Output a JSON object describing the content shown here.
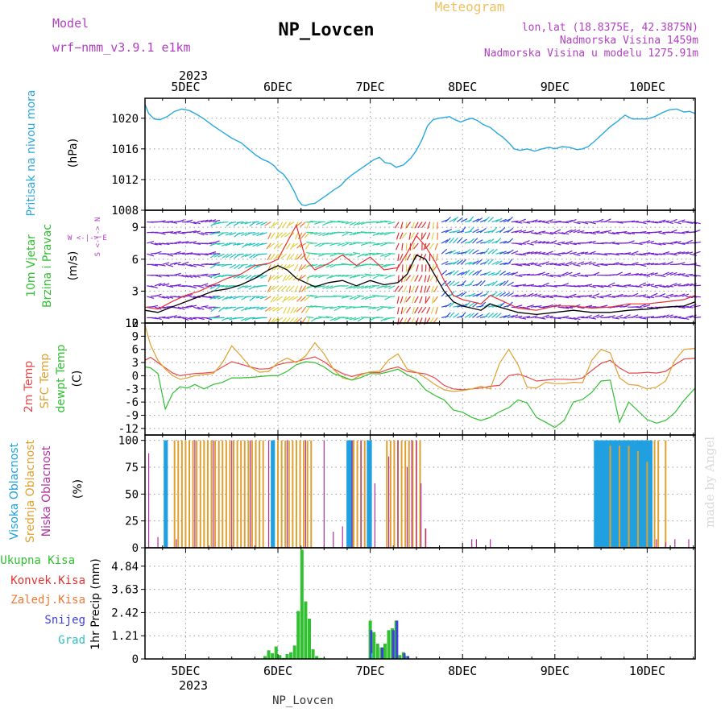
{
  "header": {
    "model_label": "Model",
    "model_name": "wrf−nmm_v3.9.1 e1km",
    "station": "NP_Lovcen",
    "product": "Meteogram",
    "lonlat": "lon,lat (18.8375E, 42.3875N)",
    "altitude": "Nadmorska Visina 1459m",
    "model_altitude": "Nadmorska Visina u modelu 1275.91m",
    "footer": "NP_Lovcen",
    "watermark": "made by Angel"
  },
  "colors": {
    "pressure": "#29a8e0",
    "wind_speed": "#000000",
    "wind_gust": "#e83030",
    "t2m": "#e84848",
    "sfc": "#e0a030",
    "dew": "#30c030",
    "cloud_high": "#20a0e0",
    "cloud_mid": "#e0a030",
    "cloud_low": "#b030a0",
    "precip_total": "#30c030",
    "precip_conv": "#e83030",
    "precip_frozen": "#f07830",
    "precip_snow": "#4040e0",
    "precip_graupel": "#30c0c0"
  },
  "time_axis": {
    "year": "2023",
    "days": [
      "5DEC",
      "6DEC",
      "7DEC",
      "8DEC",
      "9DEC",
      "10DEC"
    ],
    "day_positions": [
      5,
      6,
      7,
      8,
      9,
      10
    ],
    "start": 4.56,
    "end": 10.52
  },
  "chart_data": [
    {
      "type": "line",
      "panel": "pressure",
      "ylabel": "Pritisak na nivou mora",
      "yunit": "(hPa)",
      "ylim": [
        1008,
        1022.6
      ],
      "yticks": [
        1008,
        1012,
        1016,
        1020
      ],
      "x": [
        4.56,
        4.6,
        4.66,
        4.72,
        4.8,
        4.88,
        4.96,
        5.04,
        5.12,
        5.2,
        5.3,
        5.4,
        5.5,
        5.6,
        5.68,
        5.76,
        5.84,
        5.9,
        5.96,
        6.0,
        6.06,
        6.12,
        6.18,
        6.22,
        6.26,
        6.3,
        6.34,
        6.4,
        6.46,
        6.52,
        6.6,
        6.68,
        6.74,
        6.8,
        6.86,
        6.92,
        6.98,
        7.04,
        7.1,
        7.16,
        7.22,
        7.28,
        7.36,
        7.44,
        7.5,
        7.56,
        7.62,
        7.68,
        7.74,
        7.8,
        7.86,
        7.92,
        7.98,
        8.04,
        8.1,
        8.16,
        8.22,
        8.3,
        8.38,
        8.44,
        8.5,
        8.56,
        8.62,
        8.7,
        8.78,
        8.86,
        8.94,
        9.0,
        9.08,
        9.16,
        9.24,
        9.3,
        9.36,
        9.44,
        9.52,
        9.6,
        9.68,
        9.76,
        9.84,
        9.92,
        10.0,
        10.08,
        10.16,
        10.24,
        10.32,
        10.4,
        10.46,
        10.52
      ],
      "series": [
        {
          "values": [
            1021.8,
            1020.6,
            1019.9,
            1019.8,
            1020.2,
            1020.9,
            1021.2,
            1021.0,
            1020.5,
            1019.9,
            1019.0,
            1018.2,
            1017.4,
            1016.8,
            1016.0,
            1015.2,
            1014.6,
            1014.3,
            1013.8,
            1013.2,
            1012.7,
            1011.7,
            1010.4,
            1009.3,
            1008.7,
            1008.6,
            1008.8,
            1008.9,
            1009.4,
            1009.9,
            1010.6,
            1011.2,
            1012.0,
            1012.6,
            1013.1,
            1013.6,
            1014.1,
            1014.6,
            1014.9,
            1014.2,
            1014.1,
            1013.6,
            1013.9,
            1014.8,
            1015.8,
            1017.2,
            1019.0,
            1019.8,
            1020.0,
            1020.1,
            1020.2,
            1019.8,
            1019.5,
            1019.8,
            1020.0,
            1019.7,
            1019.2,
            1018.8,
            1018.0,
            1017.5,
            1016.8,
            1016.0,
            1015.8,
            1016.0,
            1015.7,
            1016.0,
            1016.2,
            1016.0,
            1016.3,
            1016.2,
            1015.9,
            1016.0,
            1016.3,
            1017.1,
            1018.0,
            1018.9,
            1019.6,
            1020.4,
            1019.9,
            1019.9,
            1019.9,
            1020.2,
            1020.7,
            1021.1,
            1021.2,
            1020.8,
            1020.9,
            1020.6
          ],
          "color_key": "pressure"
        }
      ]
    },
    {
      "type": "line",
      "panel": "wind",
      "ylabel": "10m Vjetar Brzina i Pravac",
      "yunit": "(m/s)",
      "legend_dir": "W <-|-> E",
      "legend_ns": "S <-|-> N",
      "ylim": [
        0,
        10.6
      ],
      "yticks": [
        0,
        3,
        6,
        9
      ],
      "x": [
        4.56,
        4.7,
        4.85,
        5.0,
        5.15,
        5.3,
        5.45,
        5.6,
        5.75,
        5.9,
        6.0,
        6.1,
        6.2,
        6.3,
        6.4,
        6.55,
        6.7,
        6.85,
        7.0,
        7.15,
        7.3,
        7.4,
        7.5,
        7.6,
        7.7,
        7.8,
        7.9,
        8.0,
        8.1,
        8.2,
        8.3,
        8.4,
        8.6,
        8.8,
        9.0,
        9.2,
        9.4,
        9.6,
        9.8,
        10.0,
        10.2,
        10.4,
        10.52
      ],
      "series": [
        {
          "name": "speed",
          "values": [
            1.2,
            1.0,
            1.5,
            2.0,
            2.5,
            3.0,
            3.2,
            3.6,
            4.2,
            5.0,
            5.4,
            5.0,
            4.2,
            3.8,
            3.4,
            3.8,
            4.0,
            3.5,
            4.0,
            3.6,
            3.8,
            4.6,
            6.4,
            6.0,
            4.5,
            3.0,
            2.0,
            1.6,
            1.4,
            1.2,
            1.8,
            1.5,
            1.0,
            0.8,
            1.0,
            1.2,
            1.0,
            1.0,
            1.2,
            1.3,
            1.5,
            1.6,
            2.0
          ],
          "color_key": "wind_speed"
        },
        {
          "name": "gust",
          "values": [
            1.5,
            1.3,
            2.0,
            2.6,
            3.0,
            3.6,
            4.2,
            4.6,
            5.4,
            5.6,
            6.0,
            7.6,
            9.2,
            6.0,
            5.0,
            5.6,
            6.4,
            5.4,
            6.2,
            5.0,
            5.2,
            6.6,
            8.2,
            7.2,
            5.8,
            4.0,
            2.6,
            2.2,
            2.0,
            1.8,
            2.6,
            2.2,
            1.4,
            1.2,
            1.6,
            1.6,
            1.4,
            1.5,
            1.8,
            1.8,
            2.0,
            2.2,
            2.6
          ],
          "color_key": "wind_gust"
        }
      ]
    },
    {
      "type": "line",
      "panel": "temperature",
      "ylabels": [
        "2m Temp",
        "SFC Temp",
        "dewpt Temp"
      ],
      "yunit": "(C)",
      "ylim": [
        -13.5,
        12
      ],
      "yticks": [
        -12,
        -9,
        -6,
        -3,
        0,
        3,
        6,
        9,
        12
      ],
      "x": [
        4.56,
        4.62,
        4.7,
        4.78,
        4.86,
        4.94,
        5.02,
        5.1,
        5.2,
        5.3,
        5.4,
        5.5,
        5.6,
        5.7,
        5.8,
        5.9,
        6.0,
        6.1,
        6.2,
        6.3,
        6.4,
        6.5,
        6.6,
        6.7,
        6.8,
        6.9,
        7.0,
        7.1,
        7.2,
        7.3,
        7.4,
        7.5,
        7.6,
        7.7,
        7.8,
        7.9,
        8.0,
        8.1,
        8.2,
        8.3,
        8.4,
        8.5,
        8.6,
        8.7,
        8.8,
        8.9,
        9.0,
        9.1,
        9.2,
        9.3,
        9.4,
        9.5,
        9.6,
        9.7,
        9.8,
        9.9,
        10.0,
        10.1,
        10.2,
        10.3,
        10.4,
        10.52
      ],
      "series": [
        {
          "name": "2m Temp",
          "values": [
            3.5,
            4.2,
            3.0,
            1.8,
            0.6,
            0.0,
            0.3,
            0.5,
            0.6,
            0.8,
            2.0,
            3.2,
            2.6,
            2.0,
            1.5,
            1.6,
            2.5,
            3.0,
            3.2,
            3.8,
            4.3,
            3.2,
            1.6,
            0.5,
            -0.2,
            0.4,
            0.8,
            0.7,
            1.5,
            2.0,
            1.0,
            0.7,
            0.4,
            -0.5,
            -2.2,
            -3.0,
            -3.2,
            -3.0,
            -2.8,
            -2.4,
            -2.2,
            0.0,
            0.4,
            -0.3,
            -1.2,
            -1.0,
            -0.8,
            -0.8,
            -0.9,
            -0.5,
            1.2,
            2.8,
            3.5,
            1.8,
            0.6,
            0.6,
            0.8,
            0.6,
            1.0,
            2.5,
            3.8,
            4.0
          ],
          "color_key": "t2m"
        },
        {
          "name": "SFC Temp",
          "values": [
            11.5,
            7.0,
            3.5,
            1.5,
            0.0,
            -0.8,
            -0.5,
            0.0,
            0.3,
            0.5,
            3.0,
            6.8,
            4.5,
            2.0,
            0.8,
            1.0,
            3.0,
            4.0,
            3.0,
            4.5,
            7.5,
            5.0,
            1.5,
            -0.5,
            -1.0,
            0.2,
            0.9,
            1.0,
            3.6,
            5.0,
            1.5,
            0.8,
            -0.5,
            -2.0,
            -3.2,
            -3.6,
            -3.4,
            -3.0,
            -2.4,
            -3.0,
            2.8,
            6.0,
            2.5,
            -2.6,
            -2.8,
            -1.5,
            -1.8,
            -1.8,
            -1.5,
            -1.6,
            3.5,
            6.0,
            5.2,
            -0.5,
            -2.0,
            -2.2,
            -3.0,
            -2.6,
            -1.2,
            3.5,
            6.0,
            6.2
          ],
          "color_key": "sfc"
        },
        {
          "name": "dewpt Temp",
          "values": [
            2.0,
            1.8,
            0.5,
            -7.6,
            -4.0,
            -2.5,
            -2.8,
            -2.0,
            -3.0,
            -2.0,
            -1.5,
            -0.5,
            -0.5,
            -0.4,
            -0.2,
            0.0,
            0.0,
            1.0,
            2.5,
            3.2,
            3.0,
            2.0,
            0.5,
            -0.2,
            -1.0,
            -0.4,
            0.5,
            0.4,
            0.9,
            1.5,
            0.2,
            -0.8,
            -3.2,
            -4.5,
            -5.5,
            -7.8,
            -8.3,
            -9.5,
            -10.2,
            -9.5,
            -8.2,
            -7.3,
            -5.5,
            -6.2,
            -9.5,
            -10.6,
            -11.8,
            -10.2,
            -6.0,
            -5.4,
            -3.8,
            -1.2,
            -1.0,
            -10.6,
            -6.0,
            -8.0,
            -10.0,
            -10.8,
            -10.2,
            -8.4,
            -5.6,
            -2.8
          ],
          "color_key": "dew"
        }
      ]
    },
    {
      "type": "bar",
      "panel": "clouds",
      "ylabels": [
        "Visoka Oblacnost",
        "Srednja Oblacnost",
        "Niska Oblacnost"
      ],
      "yunit": "(%)",
      "ylim": [
        0,
        105
      ],
      "yticks": [
        0,
        25,
        50,
        75,
        100
      ],
      "series": [
        {
          "name": "Visoka Oblacnost",
          "color_key": "cloud_high",
          "x": [
            4.78,
            4.79,
            5.94,
            5.95,
            6.76,
            6.77,
            6.78,
            6.8,
            6.98,
            6.99,
            7.0,
            9.44,
            9.46,
            9.48,
            9.5,
            9.52,
            9.54,
            9.56,
            9.58,
            9.6,
            9.62,
            9.64,
            9.66,
            9.68,
            9.7,
            9.72,
            9.74,
            9.76,
            9.78,
            9.8,
            9.82,
            9.84,
            9.86,
            9.88,
            9.9,
            9.92,
            9.94,
            9.96,
            9.98,
            10.0,
            10.02,
            10.04
          ],
          "values": [
            100,
            100,
            100,
            100,
            100,
            100,
            100,
            100,
            100,
            100,
            100,
            100,
            100,
            100,
            100,
            100,
            100,
            100,
            100,
            100,
            100,
            100,
            100,
            100,
            100,
            100,
            100,
            100,
            100,
            100,
            100,
            100,
            100,
            100,
            100,
            100,
            100,
            100,
            100,
            100,
            100,
            100
          ]
        },
        {
          "name": "Srednja Oblacnost",
          "color_key": "cloud_mid",
          "x": [
            4.88,
            4.92,
            4.96,
            5.0,
            5.04,
            5.08,
            5.12,
            5.16,
            5.2,
            5.24,
            5.28,
            5.32,
            5.36,
            5.4,
            5.44,
            5.48,
            5.52,
            5.56,
            5.6,
            5.64,
            5.68,
            5.72,
            5.76,
            5.8,
            5.84,
            6.0,
            6.04,
            6.08,
            6.12,
            6.16,
            6.2,
            6.24,
            6.28,
            6.32,
            6.36,
            6.82,
            6.86,
            6.9,
            6.94,
            7.18,
            7.22,
            7.26,
            7.3,
            7.34,
            7.38,
            7.42,
            7.46,
            7.5,
            7.54,
            7.6,
            9.6,
            9.7,
            9.8,
            9.9,
            10.0,
            10.08,
            10.12,
            10.2
          ],
          "values": [
            100,
            100,
            100,
            100,
            100,
            100,
            100,
            100,
            100,
            100,
            100,
            100,
            100,
            100,
            100,
            100,
            100,
            100,
            100,
            100,
            100,
            100,
            100,
            100,
            100,
            100,
            100,
            100,
            100,
            100,
            100,
            100,
            100,
            100,
            100,
            100,
            100,
            100,
            100,
            100,
            100,
            100,
            100,
            100,
            100,
            100,
            100,
            100,
            100,
            18,
            95,
            95,
            95,
            90,
            80,
            100,
            100,
            100
          ]
        },
        {
          "name": "Niska Oblacnost",
          "color_key": "cloud_low",
          "x": [
            4.6,
            4.7,
            4.9,
            5.1,
            5.3,
            5.5,
            5.7,
            5.9,
            6.1,
            6.3,
            6.5,
            6.6,
            6.7,
            6.8,
            6.9,
            7.05,
            7.2,
            7.3,
            7.4,
            7.45,
            7.5,
            7.55,
            7.6,
            8.1,
            8.15,
            8.3,
            10.1,
            10.2,
            10.3,
            10.45
          ],
          "values": [
            88,
            10,
            8,
            100,
            100,
            100,
            100,
            100,
            100,
            100,
            100,
            15,
            20,
            100,
            100,
            60,
            85,
            100,
            75,
            100,
            100,
            60,
            18,
            8,
            8,
            8,
            8,
            5,
            8,
            8
          ]
        }
      ]
    },
    {
      "type": "bar",
      "panel": "precipitation",
      "legend": [
        "Ukupna Kisa",
        "Konvek.Kisa",
        "Zaledj.Kisa",
        "Snijeg",
        "Grad"
      ],
      "ylabel": "1hr Precip (mm)",
      "ylim": [
        0,
        5.8
      ],
      "yticks": [
        0,
        1.21,
        2.42,
        3.63,
        4.84
      ],
      "ytick_labels": [
        "0",
        "1.21",
        "2.42",
        "3.63",
        "4.84"
      ],
      "series": [
        {
          "name": "Ukupna Kisa",
          "color_key": "precip_total",
          "x": [
            5.86,
            5.9,
            5.94,
            5.98,
            6.02,
            6.06,
            6.1,
            6.14,
            6.18,
            6.22,
            6.26,
            6.3,
            6.34,
            6.38,
            6.42,
            6.46,
            6.5,
            7.0,
            7.04,
            7.08,
            7.12,
            7.16,
            7.2,
            7.24,
            7.28,
            7.32,
            7.36,
            7.4
          ],
          "values": [
            0.15,
            0.45,
            0.3,
            0.65,
            0.2,
            0.05,
            0.25,
            0.35,
            0.7,
            2.5,
            5.7,
            3.0,
            2.1,
            0.5,
            0.15,
            0.05,
            0.05,
            2.0,
            1.4,
            0.8,
            0.6,
            0.8,
            1.5,
            1.6,
            2.0,
            0.2,
            0.35,
            0.15
          ]
        },
        {
          "name": "Snijeg",
          "color_key": "precip_snow",
          "x": [
            7.01,
            7.13,
            7.25,
            7.29,
            7.37,
            7.41
          ],
          "values": [
            1.5,
            0.6,
            1.5,
            2.0,
            0.3,
            0.15
          ]
        },
        {
          "name": "Grad",
          "color_key": "precip_graupel",
          "x": [
            7.02
          ],
          "values": [
            0.3
          ]
        }
      ]
    }
  ]
}
